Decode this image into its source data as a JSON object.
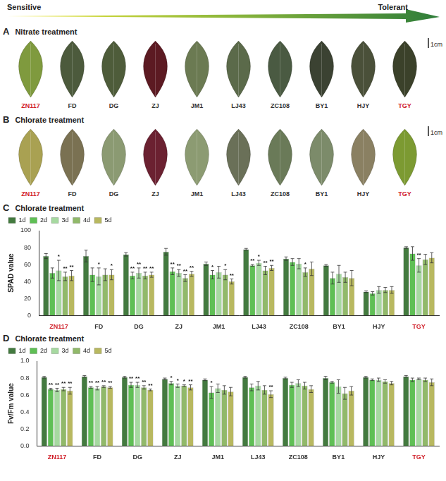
{
  "header": {
    "left": "Sensitive",
    "right": "Tolerant"
  },
  "highlight": [
    "ZN117",
    "TGY"
  ],
  "panels": [
    {
      "letter": "A",
      "title": "Nitrate treatment",
      "scale_bar": "1cm",
      "leaves": [
        {
          "label": "ZN117",
          "color": "#7f9a3e"
        },
        {
          "label": "FD",
          "color": "#4c5a3c"
        },
        {
          "label": "DG",
          "color": "#4e5c3a"
        },
        {
          "label": "ZJ",
          "color": "#5c1a22"
        },
        {
          "label": "JM1",
          "color": "#6b7a52"
        },
        {
          "label": "LJ43",
          "color": "#5b6a4a"
        },
        {
          "label": "ZC108",
          "color": "#4a5a42"
        },
        {
          "label": "BY1",
          "color": "#3b4232"
        },
        {
          "label": "HJY",
          "color": "#4a5039"
        },
        {
          "label": "TGY",
          "color": "#3b412a"
        }
      ]
    },
    {
      "letter": "B",
      "title": "Chlorate treatment",
      "scale_bar": "1cm",
      "leaves": [
        {
          "label": "ZN117",
          "color": "#a9a152"
        },
        {
          "label": "FD",
          "color": "#7a7152"
        },
        {
          "label": "DG",
          "color": "#8b9a72"
        },
        {
          "label": "ZJ",
          "color": "#6b2131"
        },
        {
          "label": "JM1",
          "color": "#8c9b72"
        },
        {
          "label": "LJ43",
          "color": "#6a7058"
        },
        {
          "label": "ZC108",
          "color": "#6a7a58"
        },
        {
          "label": "BY1",
          "color": "#7c8b6a"
        },
        {
          "label": "HJY",
          "color": "#8a8062"
        },
        {
          "label": "TGY",
          "color": "#7c9a32"
        }
      ]
    }
  ],
  "chart_data": [
    {
      "type": "bar",
      "panel": "C",
      "title": "Chlorate treatment",
      "y_label": "SPAD value",
      "categories": [
        "ZN117",
        "FD",
        "DG",
        "ZJ",
        "JM1",
        "LJ43",
        "ZC108",
        "BY1",
        "HJY",
        "TGY"
      ],
      "ylim": [
        0,
        100
      ],
      "yticks": [
        0,
        20,
        40,
        60,
        80,
        100
      ],
      "grid": false,
      "legend": "top",
      "series": [
        {
          "name": "1d",
          "color": "#437a3f",
          "values": [
            70,
            70,
            72,
            75,
            61,
            78,
            67,
            59,
            28,
            80
          ],
          "errors": [
            3,
            7,
            2,
            4,
            2,
            1,
            2,
            1,
            1,
            1
          ],
          "significance": [
            null,
            null,
            null,
            null,
            null,
            null,
            null,
            null,
            null,
            null
          ]
        },
        {
          "name": "2d",
          "color": "#5fbf55",
          "values": [
            50,
            48,
            47,
            52,
            48,
            59,
            63,
            44,
            26,
            73
          ],
          "errors": [
            6,
            8,
            4,
            4,
            5,
            1,
            4,
            7,
            2,
            8
          ],
          "significance": [
            null,
            null,
            "**",
            "**",
            "*",
            "**",
            null,
            null,
            null,
            null
          ]
        },
        {
          "name": "3d",
          "color": "#a6d9a0",
          "values": [
            53,
            46,
            50,
            50,
            51,
            62,
            61,
            49,
            30,
            59
          ],
          "errors": [
            12,
            10,
            6,
            4,
            7,
            3,
            6,
            10,
            4,
            8
          ],
          "significance": [
            "*",
            "*",
            "**",
            "**",
            null,
            "*",
            null,
            null,
            null,
            "**"
          ]
        },
        {
          "name": "4d",
          "color": "#91b96a",
          "values": [
            46,
            48,
            47,
            44,
            48,
            53,
            51,
            45,
            30,
            66
          ],
          "errors": [
            5,
            7,
            4,
            4,
            6,
            5,
            5,
            6,
            3,
            6
          ],
          "significance": [
            "**",
            null,
            "**",
            "**",
            "*",
            "**",
            "*",
            null,
            null,
            null
          ]
        },
        {
          "name": "5d",
          "color": "#b8b860",
          "values": [
            47,
            48,
            48,
            49,
            40,
            56,
            55,
            44,
            30,
            68
          ],
          "errors": [
            6,
            6,
            3,
            3,
            3,
            3,
            8,
            9,
            4,
            6
          ],
          "significance": [
            "**",
            "*",
            "**",
            "**",
            "**",
            "**",
            null,
            null,
            null,
            null
          ]
        }
      ]
    },
    {
      "type": "bar",
      "panel": "D",
      "title": "Chlorate treatment",
      "y_label": "Fv/Fm value",
      "categories": [
        "ZN117",
        "FD",
        "DG",
        "ZJ",
        "JM1",
        "LJ43",
        "ZC108",
        "BY1",
        "HJY",
        "TGY"
      ],
      "ylim": [
        0,
        1
      ],
      "yticks": [
        {
          "value": 0,
          "label": "0.0"
        },
        {
          "value": 0.2,
          "label": "0.2"
        },
        {
          "value": 0.4,
          "label": "0.4"
        },
        {
          "value": 0.6,
          "label": "0.6"
        },
        {
          "value": 0.8,
          "label": "0.8"
        },
        {
          "value": 1,
          "label": "1.0"
        }
      ],
      "grid": false,
      "legend": "top",
      "series": [
        {
          "name": "1d",
          "color": "#437a3f",
          "values": [
            0.81,
            0.82,
            0.81,
            0.79,
            0.78,
            0.81,
            0.8,
            0.8,
            0.81,
            0.82
          ],
          "errors": [
            0.01,
            0.01,
            0.01,
            0.01,
            0.01,
            0.01,
            0.01,
            0.02,
            0.01,
            0.01
          ],
          "significance": [
            null,
            null,
            null,
            null,
            null,
            null,
            null,
            null,
            null,
            null
          ]
        },
        {
          "name": "2d",
          "color": "#5fbf55",
          "values": [
            0.67,
            0.69,
            0.72,
            0.74,
            0.63,
            0.69,
            0.72,
            0.75,
            0.78,
            0.78
          ],
          "errors": [
            0.01,
            0.01,
            0.03,
            0.02,
            0.07,
            0.04,
            0.03,
            0.01,
            0.01,
            0.02
          ],
          "significance": [
            "**",
            "**",
            "**",
            "*",
            "*",
            null,
            null,
            null,
            null,
            null
          ]
        },
        {
          "name": "3d",
          "color": "#a6d9a0",
          "values": [
            0.66,
            0.68,
            0.72,
            0.71,
            0.68,
            0.71,
            0.74,
            0.7,
            0.78,
            0.79
          ],
          "errors": [
            0.02,
            0.02,
            0.03,
            0.02,
            0.05,
            0.05,
            0.04,
            0.08,
            0.02,
            0.01
          ],
          "significance": [
            "**",
            "**",
            "**",
            "*",
            null,
            null,
            null,
            null,
            null,
            null
          ]
        },
        {
          "name": "4d",
          "color": "#91b96a",
          "values": [
            0.67,
            0.7,
            0.69,
            0.71,
            0.66,
            0.66,
            0.71,
            0.62,
            0.76,
            0.78
          ],
          "errors": [
            0.02,
            0.01,
            0.02,
            0.01,
            0.05,
            0.05,
            0.04,
            0.07,
            0.02,
            0.02
          ],
          "significance": [
            "**",
            "**",
            "**",
            "*",
            null,
            null,
            null,
            null,
            null,
            null
          ]
        },
        {
          "name": "5d",
          "color": "#b8b860",
          "values": [
            0.65,
            0.69,
            0.66,
            0.69,
            0.64,
            0.61,
            0.67,
            0.65,
            0.74,
            0.75
          ],
          "errors": [
            0.04,
            0.01,
            0.01,
            0.03,
            0.05,
            0.04,
            0.04,
            0.05,
            0.02,
            0.04
          ],
          "significance": [
            "**",
            "**",
            "**",
            "**",
            null,
            "**",
            null,
            null,
            null,
            null
          ]
        }
      ]
    }
  ]
}
